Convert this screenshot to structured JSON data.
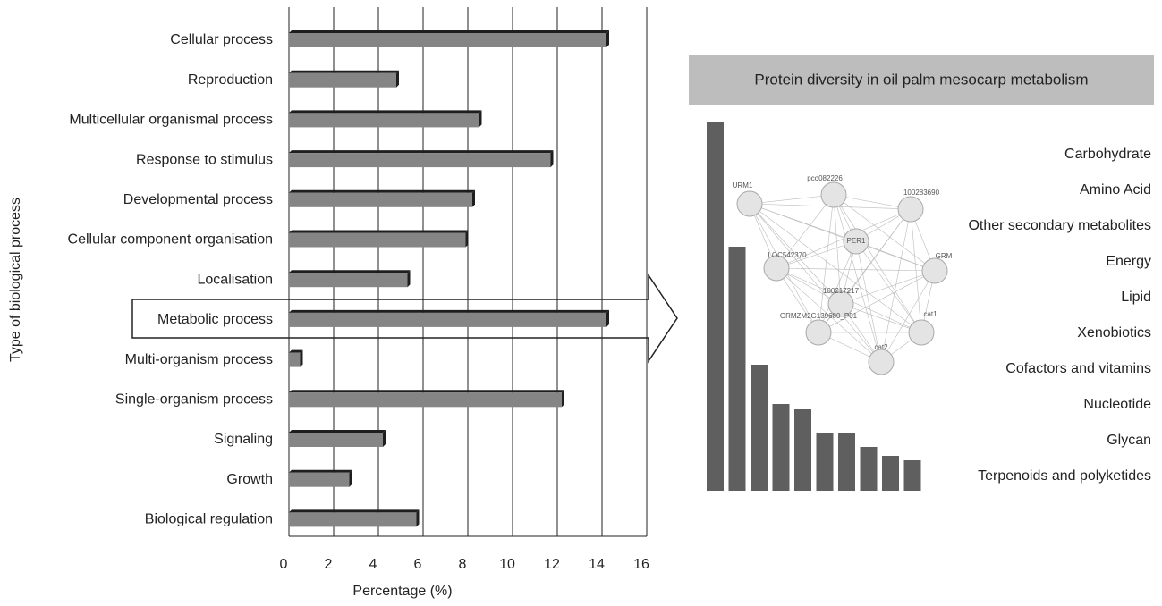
{
  "chart_data": [
    {
      "type": "bar",
      "horizontal": true,
      "xlabel": "Percentage (%)",
      "ylabel": "Type of biological process",
      "categories": [
        "Cellular process",
        "Reproduction",
        "Multicellular organismal process",
        "Response to stimulus",
        "Developmental process",
        "Cellular component organisation",
        "Localisation",
        "Metabolic process",
        "Multi-organism process",
        "Single-organism process",
        "Signaling",
        "Growth",
        "Biological regulation"
      ],
      "values": [
        14.2,
        4.8,
        8.5,
        11.7,
        8.2,
        7.9,
        5.3,
        14.2,
        0.5,
        12.2,
        4.2,
        2.7,
        5.7
      ],
      "color": "#858585",
      "xlim": [
        0,
        16
      ],
      "xticks": [
        0,
        2,
        4,
        6,
        8,
        10,
        12,
        14,
        16
      ],
      "grid": true
    },
    {
      "type": "bar",
      "title": "Protein diversity in oil palm mesocarp metabolism",
      "categories": [
        "Carbohydrate",
        "Amino Acid",
        "Other secondary metabolites",
        "Energy",
        "Lipid",
        "Xenobiotics",
        "Cofactors and vitamins",
        "Nucleotide",
        "Glycan",
        "Terpenoids and polyketides"
      ],
      "values": [
        412,
        273,
        141,
        97,
        91,
        65,
        65,
        49,
        39,
        34
      ],
      "color": "#5f5f5f",
      "network_labels": [
        "URM1",
        "pco082226",
        "100283690",
        "PER1",
        "LOC542370",
        "GRM",
        "100217217",
        "GRMZM2G139680_P01",
        "cat1",
        "cat2"
      ]
    }
  ]
}
